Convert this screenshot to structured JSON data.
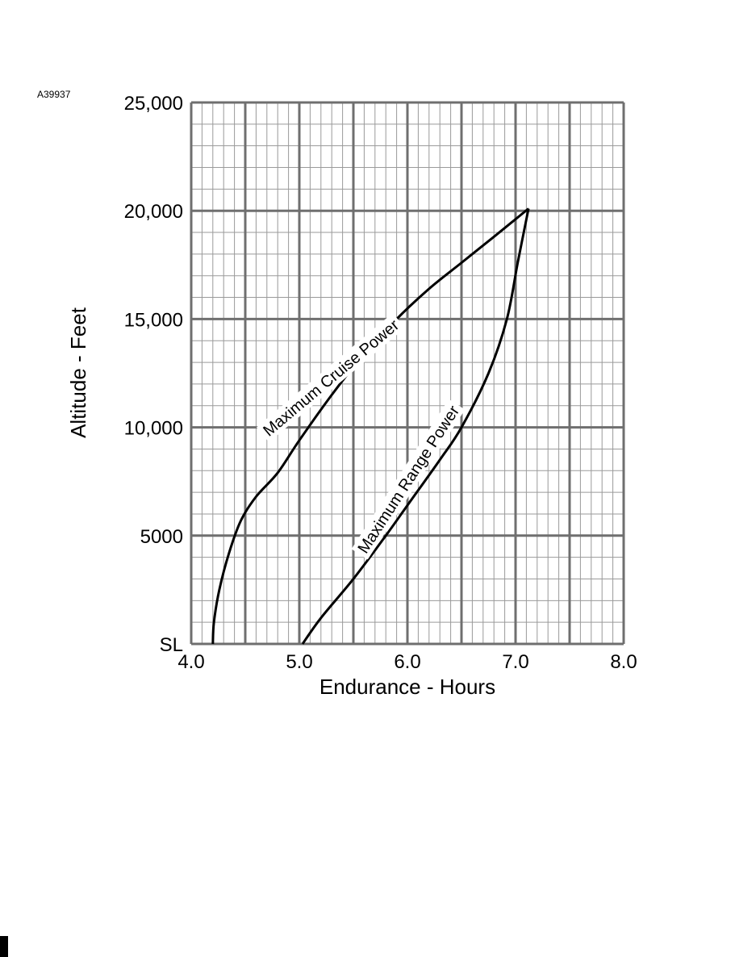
{
  "figure_id": "A39937",
  "chart_data": {
    "type": "line",
    "xlabel": "Endurance - Hours",
    "ylabel": "Altitude - Feet",
    "xlim": [
      4.0,
      8.0
    ],
    "ylim": [
      0,
      25000
    ],
    "x_ticks": [
      "4.0",
      "5.0",
      "6.0",
      "7.0",
      "8.0"
    ],
    "y_ticks": [
      "SL",
      "5000",
      "10,000",
      "15,000",
      "20,000",
      "25,000"
    ],
    "grid": true,
    "series": [
      {
        "name": "Maximum Cruise Power",
        "points": [
          [
            4.2,
            0
          ],
          [
            4.21,
            1000
          ],
          [
            4.26,
            2500
          ],
          [
            4.35,
            4200
          ],
          [
            4.46,
            5700
          ],
          [
            4.6,
            6800
          ],
          [
            4.8,
            7900
          ],
          [
            5.0,
            9400
          ],
          [
            5.3,
            11500
          ],
          [
            5.6,
            13400
          ],
          [
            5.9,
            15000
          ],
          [
            6.2,
            16400
          ],
          [
            6.5,
            17600
          ],
          [
            6.8,
            18800
          ],
          [
            7.12,
            20100
          ]
        ]
      },
      {
        "name": "Maximum Range Power",
        "points": [
          [
            5.03,
            0
          ],
          [
            5.2,
            1200
          ],
          [
            5.5,
            3000
          ],
          [
            5.8,
            5000
          ],
          [
            6.0,
            6400
          ],
          [
            6.3,
            8500
          ],
          [
            6.5,
            10000
          ],
          [
            6.75,
            12500
          ],
          [
            6.92,
            15000
          ],
          [
            7.02,
            17600
          ],
          [
            7.12,
            20100
          ]
        ]
      }
    ]
  }
}
